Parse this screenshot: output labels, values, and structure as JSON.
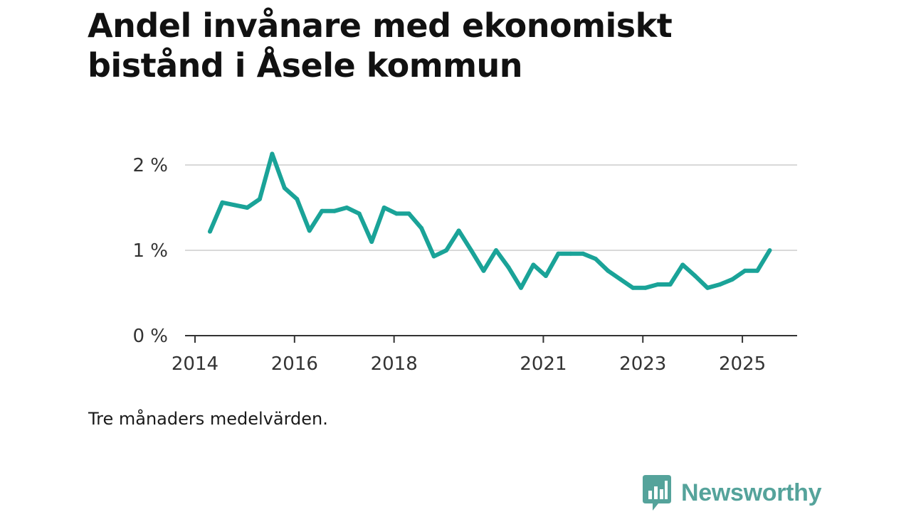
{
  "title": "Andel invånare med ekonomiskt bistånd i Åsele kommun",
  "note": "Tre månaders medelvärden.",
  "brand": {
    "name": "Newsworthy",
    "icon": "bar-chart-speech-bubble-icon",
    "color": "#55a39b"
  },
  "chart_data": {
    "type": "line",
    "title": "Andel invånare med ekonomiskt bistånd i Åsele kommun",
    "xlabel": "",
    "ylabel": "",
    "ylim": [
      0,
      2.0
    ],
    "xlim": [
      2013.9,
      2025.9
    ],
    "grid": true,
    "yticks": [
      {
        "value": 0,
        "label": "0 %"
      },
      {
        "value": 1,
        "label": "1 %"
      },
      {
        "value": 2,
        "label": "2 %"
      }
    ],
    "xticks": [
      {
        "value": 2014,
        "label": "2014"
      },
      {
        "value": 2016,
        "label": "2016"
      },
      {
        "value": 2018,
        "label": "2018"
      },
      {
        "value": 2021,
        "label": "2021"
      },
      {
        "value": 2023,
        "label": "2023"
      },
      {
        "value": 2025,
        "label": "2025"
      }
    ],
    "series": [
      {
        "name": "Andel invånare med ekonomiskt bistånd",
        "color": "#1aa398",
        "x": [
          2014.3,
          2014.55,
          2014.8,
          2015.05,
          2015.3,
          2015.55,
          2015.8,
          2016.05,
          2016.3,
          2016.55,
          2016.8,
          2017.05,
          2017.3,
          2017.55,
          2017.8,
          2018.05,
          2018.3,
          2018.55,
          2018.8,
          2019.05,
          2019.3,
          2019.55,
          2019.8,
          2020.05,
          2020.3,
          2020.55,
          2020.8,
          2021.05,
          2021.3,
          2021.55,
          2021.8,
          2022.05,
          2022.3,
          2022.55,
          2022.8,
          2023.05,
          2023.3,
          2023.55,
          2023.8,
          2024.05,
          2024.3,
          2024.55,
          2024.8,
          2025.05,
          2025.3,
          2025.55
        ],
        "values": [
          1.22,
          1.56,
          1.53,
          1.5,
          1.6,
          2.13,
          1.73,
          1.6,
          1.23,
          1.46,
          1.46,
          1.5,
          1.43,
          1.1,
          1.5,
          1.43,
          1.43,
          1.26,
          0.93,
          1.0,
          1.23,
          1.0,
          0.76,
          1.0,
          0.8,
          0.56,
          0.83,
          0.7,
          0.96,
          0.96,
          0.96,
          0.9,
          0.76,
          0.66,
          0.56,
          0.56,
          0.6,
          0.6,
          0.83,
          0.7,
          0.56,
          0.6,
          0.66,
          0.76,
          0.76,
          1.0
        ]
      }
    ]
  }
}
